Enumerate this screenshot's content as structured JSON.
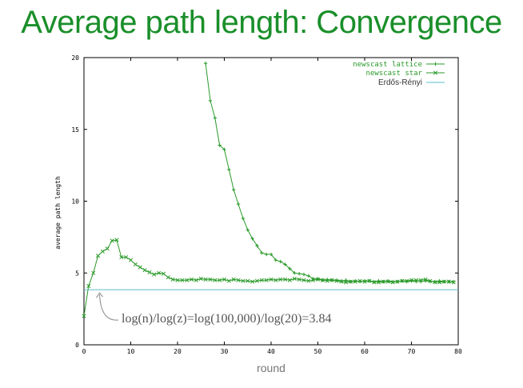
{
  "slide": {
    "title": "Average path length: Convergence"
  },
  "chart_data": {
    "type": "line",
    "title": "",
    "xlabel": "round",
    "ylabel": "average path length",
    "xlim": [
      0,
      80
    ],
    "ylim": [
      0,
      20
    ],
    "xticks": [
      "0",
      "10",
      "20",
      "30",
      "40",
      "50",
      "60",
      "70",
      "80"
    ],
    "yticks": [
      "0",
      "5",
      "10",
      "15",
      "20"
    ],
    "legend_position": "top-right",
    "grid": false,
    "series": [
      {
        "name": "newscast lattice",
        "color": "#2a9a2a",
        "marker": "plus",
        "x": [
          26,
          27,
          28,
          29,
          30,
          31,
          32,
          33,
          34,
          35,
          36,
          37,
          38,
          39,
          40,
          41,
          42,
          43,
          44,
          45,
          46,
          47,
          48,
          49,
          50,
          51,
          52,
          53,
          54,
          55,
          56,
          57,
          58,
          59,
          60,
          61,
          62,
          63,
          64,
          65,
          66,
          67,
          68,
          69,
          70,
          71,
          72,
          73,
          74,
          75,
          76,
          77,
          78,
          79
        ],
        "y": [
          19.6,
          17.0,
          15.8,
          13.9,
          13.6,
          12.2,
          10.8,
          9.8,
          8.8,
          8.0,
          7.4,
          6.9,
          6.4,
          6.3,
          6.3,
          5.9,
          5.8,
          5.6,
          5.3,
          5.0,
          4.95,
          4.9,
          4.8,
          4.6,
          4.6,
          4.5,
          4.55,
          4.5,
          4.5,
          4.45,
          4.5,
          4.4,
          4.45,
          4.4,
          4.45,
          4.45,
          4.4,
          4.45,
          4.4,
          4.45,
          4.4,
          4.4,
          4.45,
          4.4,
          4.45,
          4.4,
          4.4,
          4.45,
          4.4,
          4.4,
          4.45,
          4.4,
          4.4,
          4.4
        ]
      },
      {
        "name": "newscast star",
        "color": "#2a9a2a",
        "marker": "x",
        "x": [
          0,
          1,
          2,
          3,
          4,
          5,
          6,
          7,
          8,
          9,
          10,
          11,
          12,
          13,
          14,
          15,
          16,
          17,
          18,
          19,
          20,
          21,
          22,
          23,
          24,
          25,
          26,
          27,
          28,
          29,
          30,
          31,
          32,
          33,
          34,
          35,
          36,
          37,
          38,
          39,
          40,
          41,
          42,
          43,
          44,
          45,
          46,
          47,
          48,
          49,
          50,
          51,
          52,
          53,
          54,
          55,
          56,
          57,
          58,
          59,
          60,
          61,
          62,
          63,
          64,
          65,
          66,
          67,
          68,
          69,
          70,
          71,
          72,
          73,
          74,
          75,
          76,
          77,
          78,
          79
        ],
        "y": [
          2.0,
          4.1,
          5.0,
          6.2,
          6.5,
          6.7,
          7.25,
          7.3,
          6.1,
          6.1,
          5.9,
          5.6,
          5.4,
          5.2,
          5.05,
          4.9,
          5.0,
          4.95,
          4.7,
          4.55,
          4.5,
          4.5,
          4.5,
          4.55,
          4.5,
          4.6,
          4.55,
          4.55,
          4.5,
          4.5,
          4.55,
          4.45,
          4.55,
          4.5,
          4.45,
          4.45,
          4.4,
          4.45,
          4.5,
          4.5,
          4.55,
          4.5,
          4.55,
          4.55,
          4.5,
          4.6,
          4.55,
          4.5,
          4.45,
          4.5,
          4.55,
          4.5,
          4.45,
          4.5,
          4.45,
          4.4,
          4.35,
          4.4,
          4.4,
          4.45,
          4.4,
          4.45,
          4.35,
          4.35,
          4.4,
          4.4,
          4.35,
          4.4,
          4.45,
          4.45,
          4.5,
          4.5,
          4.5,
          4.55,
          4.45,
          4.35,
          4.35,
          4.4,
          4.4,
          4.35
        ]
      },
      {
        "name": "Erdős-Rényi",
        "color": "#5bbcc8",
        "marker": "none",
        "x": [
          0,
          80
        ],
        "y": [
          3.84,
          3.84
        ]
      }
    ],
    "annotation": {
      "text": "log(n)/log(z)=log(100,000)/log(20)=3.84",
      "points_to": {
        "x": 3,
        "y": 3.84
      }
    }
  }
}
